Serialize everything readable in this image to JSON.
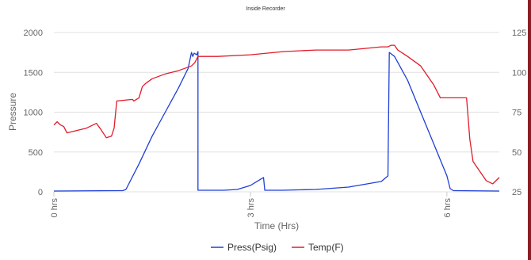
{
  "chart_data": {
    "type": "line",
    "title": "Inside Recorder",
    "xlabel": "Time (Hrs)",
    "ylabel": "Pressure",
    "xlim": [
      0,
      6.8
    ],
    "ylim": [
      0,
      2000
    ],
    "y2lim": [
      25,
      125
    ],
    "grid": true,
    "legend_position": "bottom",
    "x_ticks": [
      {
        "value": 0,
        "label": "0 hrs"
      },
      {
        "value": 3,
        "label": "3 hrs"
      },
      {
        "value": 6,
        "label": "6 hrs"
      }
    ],
    "y_ticks": [
      0,
      500,
      1000,
      1500,
      2000
    ],
    "y_ticks_labels": [
      "0",
      "500",
      "1000",
      "1500",
      "2000"
    ],
    "y2_ticks_labels": [
      "25",
      "50",
      "75",
      "100",
      "125"
    ],
    "series": [
      {
        "name": "Press(Psig)",
        "axis": "left",
        "color": "#1f3fd6",
        "x": [
          0,
          1.05,
          1.1,
          1.3,
          1.5,
          1.7,
          1.9,
          2.05,
          2.1,
          2.12,
          2.14,
          2.18,
          2.2,
          2.2,
          2.4,
          2.6,
          2.8,
          3.0,
          3.1,
          3.2,
          3.22,
          3.23,
          3.5,
          4.0,
          4.5,
          5.0,
          5.1,
          5.12,
          5.2,
          5.4,
          5.6,
          5.8,
          6.0,
          6.05,
          6.1,
          6.8
        ],
        "y": [
          10,
          15,
          30,
          350,
          700,
          1000,
          1300,
          1550,
          1750,
          1700,
          1740,
          1720,
          1760,
          20,
          20,
          20,
          30,
          80,
          130,
          180,
          20,
          20,
          20,
          30,
          60,
          130,
          200,
          1750,
          1700,
          1400,
          1000,
          600,
          200,
          40,
          15,
          10
        ]
      },
      {
        "name": "Temp(F)",
        "axis": "right",
        "color": "#e21b2a",
        "x": [
          0,
          0.05,
          0.1,
          0.15,
          0.2,
          0.5,
          0.65,
          0.72,
          0.8,
          0.88,
          0.92,
          0.96,
          1.2,
          1.22,
          1.3,
          1.35,
          1.4,
          1.5,
          1.7,
          1.9,
          2.1,
          2.15,
          2.2,
          2.5,
          3.0,
          3.5,
          4.0,
          4.5,
          5.0,
          5.1,
          5.15,
          5.2,
          5.25,
          5.4,
          5.6,
          5.8,
          5.9,
          6.0,
          6.2,
          6.3,
          6.35,
          6.4,
          6.5,
          6.6,
          6.7,
          6.8
        ],
        "y": [
          67,
          69,
          67,
          66,
          62,
          65,
          68,
          64,
          59,
          60,
          65,
          82,
          83,
          82,
          84,
          91,
          93,
          96,
          99,
          101,
          104,
          106,
          110,
          110,
          111,
          113,
          114,
          114,
          116,
          116,
          117,
          117,
          114,
          110,
          104,
          92,
          84,
          84,
          84,
          84,
          58,
          44,
          38,
          32,
          30,
          34
        ]
      }
    ]
  }
}
